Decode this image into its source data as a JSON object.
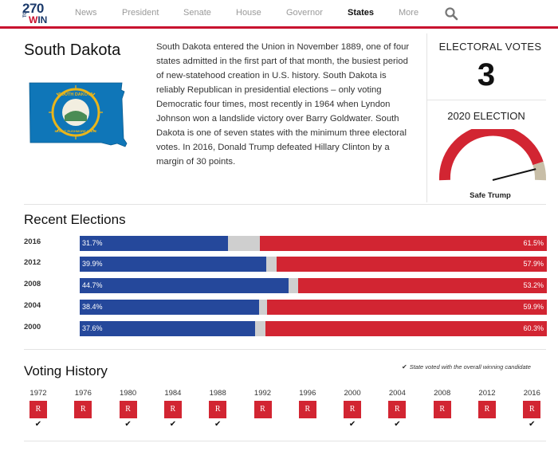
{
  "header": {
    "logo": {
      "num": "270",
      "to": "TO",
      "win_w": "W",
      "win_rest": "IN"
    },
    "nav": [
      {
        "label": "News",
        "active": false
      },
      {
        "label": "President",
        "active": false
      },
      {
        "label": "Senate",
        "active": false
      },
      {
        "label": "House",
        "active": false
      },
      {
        "label": "Governor",
        "active": false
      },
      {
        "label": "States",
        "active": true
      },
      {
        "label": "More",
        "active": false
      }
    ]
  },
  "state": {
    "name": "South Dakota",
    "description": "South Dakota entered the Union in November 1889, one of four states admitted in the first part of that month, the busiest period of new-statehood creation in U.S. history. South Dakota is reliably Republican in presidential elections – only voting Democratic four times, most recently in 1964 when Lyndon Johnson won a landslide victory over Barry Goldwater. South Dakota is one of seven states with the minimum three electoral votes. In 2016, Donald Trump defeated Hillary Clinton by a margin of 30 points.",
    "flag_seal_text": "SOUTH DAKOTA · THE MOUNT RUSHMORE STATE"
  },
  "electoral": {
    "label": "ELECTORAL VOTES",
    "votes": "3"
  },
  "election_2020": {
    "label": "2020 ELECTION",
    "rating": "Safe Trump",
    "needle_fraction": 0.92
  },
  "recent": {
    "title": "Recent Elections",
    "rows": [
      {
        "year": "2016",
        "dem": 31.7,
        "rep": 61.5,
        "dem_label": "31.7%",
        "rep_label": "61.5%"
      },
      {
        "year": "2012",
        "dem": 39.9,
        "rep": 57.9,
        "dem_label": "39.9%",
        "rep_label": "57.9%"
      },
      {
        "year": "2008",
        "dem": 44.7,
        "rep": 53.2,
        "dem_label": "44.7%",
        "rep_label": "53.2%"
      },
      {
        "year": "2004",
        "dem": 38.4,
        "rep": 59.9,
        "dem_label": "38.4%",
        "rep_label": "59.9%"
      },
      {
        "year": "2000",
        "dem": 37.6,
        "rep": 60.3,
        "dem_label": "37.6%",
        "rep_label": "60.3%"
      }
    ]
  },
  "voting_history": {
    "title": "Voting History",
    "note_check": "✔",
    "note": "State voted with the overall winning candidate",
    "years": [
      {
        "year": "1972",
        "party": "R",
        "winner": true
      },
      {
        "year": "1976",
        "party": "R",
        "winner": false
      },
      {
        "year": "1980",
        "party": "R",
        "winner": true
      },
      {
        "year": "1984",
        "party": "R",
        "winner": true
      },
      {
        "year": "1988",
        "party": "R",
        "winner": true
      },
      {
        "year": "1992",
        "party": "R",
        "winner": false
      },
      {
        "year": "1996",
        "party": "R",
        "winner": false
      },
      {
        "year": "2000",
        "party": "R",
        "winner": true
      },
      {
        "year": "2004",
        "party": "R",
        "winner": true
      },
      {
        "year": "2008",
        "party": "R",
        "winner": false
      },
      {
        "year": "2012",
        "party": "R",
        "winner": false
      },
      {
        "year": "2016",
        "party": "R",
        "winner": true
      }
    ]
  },
  "colors": {
    "dem": "#25489b",
    "rep": "#d22532",
    "other": "#cfcfcf",
    "accent": "#c8102e"
  }
}
